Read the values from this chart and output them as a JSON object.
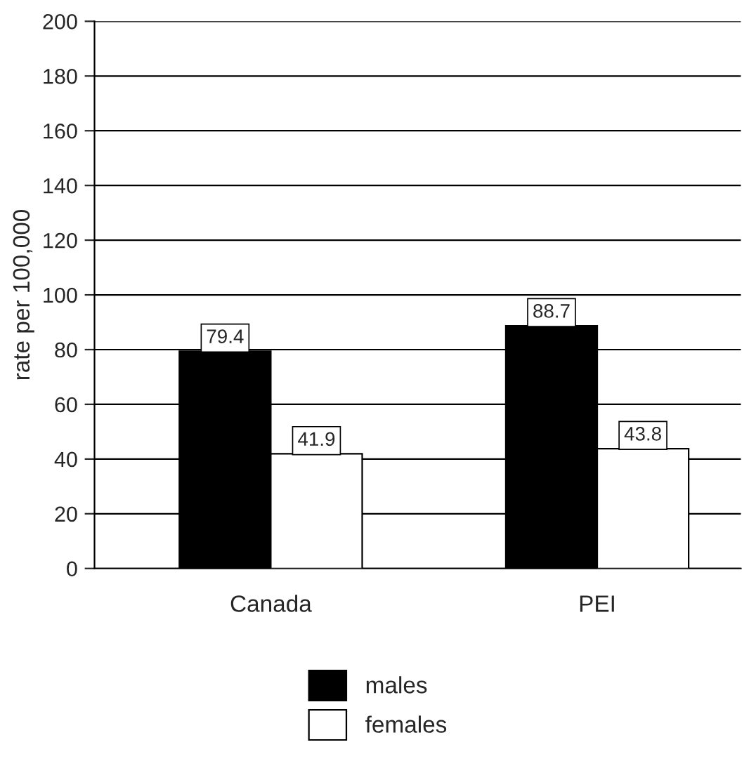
{
  "chart_data": {
    "type": "bar",
    "ylabel": "rate per 100,000",
    "categories": [
      "Canada",
      "PEI"
    ],
    "series": [
      {
        "name": "males",
        "color": "#000000",
        "values": [
          79.4,
          88.7
        ]
      },
      {
        "name": "females",
        "color": "#ffffff",
        "values": [
          41.9,
          43.8
        ]
      }
    ],
    "ylim": [
      0,
      200
    ],
    "yticks": [
      0,
      20,
      40,
      60,
      80,
      100,
      120,
      140,
      160,
      180,
      200
    ],
    "grid": "y",
    "legend": "bottom",
    "data_labels": true
  }
}
